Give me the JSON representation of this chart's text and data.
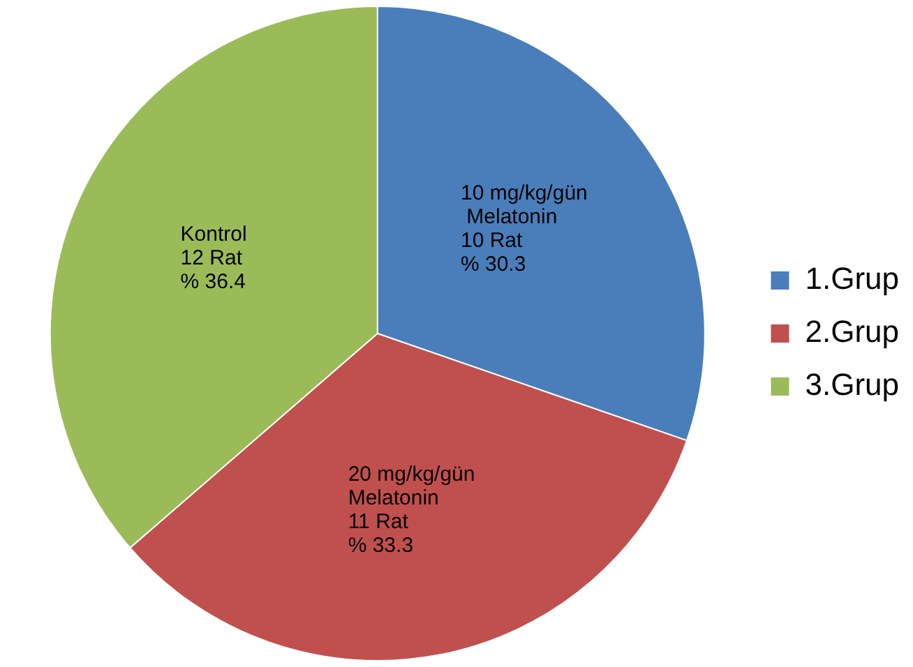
{
  "chart_data": {
    "type": "pie",
    "categories": [
      "1.Grup",
      "2.Grup",
      "3.Grup"
    ],
    "values": [
      10,
      11,
      12
    ],
    "colors": [
      "#4a7ebb",
      "#c0504d",
      "#9bbb59"
    ],
    "value_labels": [
      "10 mg/kg/gün\n Melatonin\n10 Rat\n% 30.3",
      "20 mg/kg/gün\nMelatonin\n11 Rat\n% 33.3",
      "Kontrol\n12 Rat\n% 36.4"
    ],
    "legend": "right"
  }
}
